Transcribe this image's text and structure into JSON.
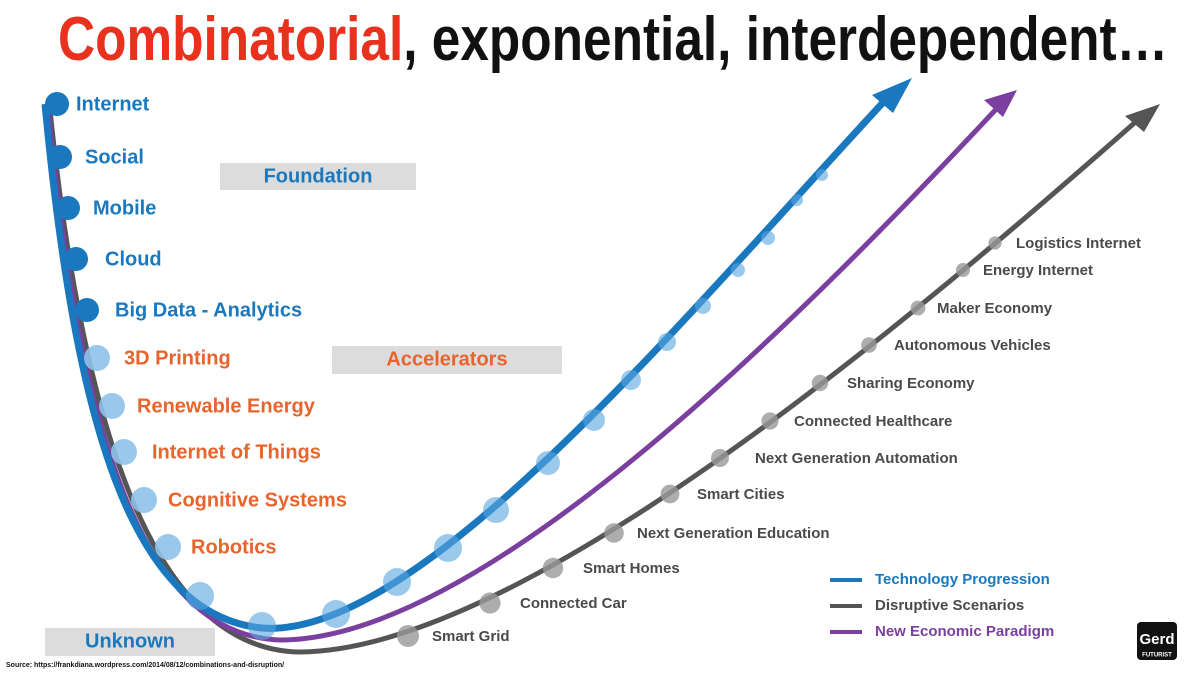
{
  "title": {
    "highlight": "Combinatorial",
    "rest": ", exponential, interdependent…"
  },
  "foundation": {
    "heading": "Foundation",
    "items": [
      "Internet",
      "Social",
      "Mobile",
      "Cloud",
      "Big Data - Analytics"
    ]
  },
  "accelerators": {
    "heading": "Accelerators",
    "items": [
      "3D Printing",
      "Renewable Energy",
      "Internet of Things",
      "Cognitive Systems",
      "Robotics"
    ]
  },
  "unknown": "Unknown",
  "scenarios": [
    "Smart Grid",
    "Connected Car",
    "Smart Homes",
    "Next Generation Education",
    "Smart Cities",
    "Next Generation Automation",
    "Connected Healthcare",
    "Sharing Economy",
    "Autonomous Vehicles",
    "Maker Economy",
    "Energy Internet",
    "Logistics Internet"
  ],
  "legend": [
    "Technology Progression",
    "Disruptive Scenarios",
    "New Economic Paradigm"
  ],
  "source": "Source: https://frankdiana.wordpress.com/2014/08/12/combinations-and-disruption/",
  "logo": {
    "name": "Gerd",
    "tagline": "FUTURIST"
  }
}
